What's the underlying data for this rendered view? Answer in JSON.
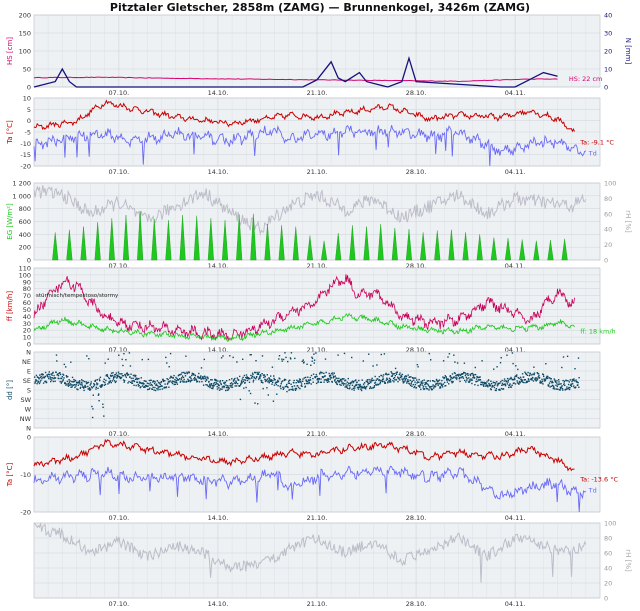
{
  "title": "Pitztaler Gletscher, 2858m (ZAMG) — Brunnenkogel, 3426m (ZAMG)",
  "x_ticks": [
    "07.10.",
    "14.10.",
    "21.10.",
    "28.10.",
    "04.11."
  ],
  "colors": {
    "magenta": "#d6006f",
    "navy": "#16127a",
    "red": "#c80000",
    "blue": "#6a6af5",
    "green": "#1fc81f",
    "gray": "#bdbdc9",
    "teal": "#0e4a66",
    "panel_bg": "#eef1f3"
  },
  "chart_data": [
    {
      "type": "line",
      "ylabel_left": "HS [cm]",
      "ylabel_right": "N [mm]",
      "ylim_left": [
        0,
        200
      ],
      "ylim_right": [
        0,
        40
      ],
      "yticks_left": [
        "0",
        "50",
        "100",
        "150",
        "200"
      ],
      "yticks_right": [
        "0",
        "10",
        "20",
        "30",
        "40"
      ],
      "series": [
        {
          "name": "HS",
          "axis": "left",
          "color": "#d6006f",
          "x": [
            0,
            5,
            10,
            15,
            20,
            25,
            30,
            35,
            40
          ],
          "values": [
            26,
            27,
            24,
            22,
            20,
            18,
            16,
            22,
            22
          ]
        },
        {
          "axis": "right",
          "color": "#16127a",
          "x": [
            0,
            1.5,
            2,
            2.5,
            3,
            4,
            15,
            19,
            20,
            21,
            21.5,
            22,
            23,
            23.5,
            25,
            26,
            26.5,
            27,
            33,
            34,
            35,
            36,
            37
          ],
          "values": [
            0,
            3,
            10,
            3,
            0,
            0,
            0,
            0,
            4,
            14,
            5,
            3,
            8,
            3,
            0,
            3,
            16,
            3,
            0,
            0,
            4,
            8,
            6
          ]
        }
      ],
      "annotations": [
        "HS: 22 cm"
      ],
      "grid": true
    },
    {
      "type": "line",
      "ylabel_left": "Ta [°C]",
      "ylim_left": [
        -20,
        12
      ],
      "yticks_left": [
        "-20",
        "-15",
        "-10",
        "-5",
        "0",
        "5",
        "10"
      ],
      "series": [
        {
          "name": "Ta",
          "color": "#c80000",
          "x": [
            0,
            3,
            5,
            7,
            10,
            14,
            18,
            20,
            22,
            25,
            28,
            30,
            33,
            35,
            37,
            38,
            40
          ],
          "values": [
            -2,
            1,
            10,
            7,
            3,
            0,
            4,
            3,
            5,
            8,
            2,
            4,
            3,
            6,
            2,
            -3,
            -9
          ]
        },
        {
          "name": "Td",
          "color": "#6a6af5",
          "x": [
            0,
            3,
            5,
            7,
            10,
            14,
            17,
            18,
            20,
            22,
            25,
            28,
            30,
            33,
            35,
            37,
            38,
            40
          ],
          "values": [
            -10,
            -6,
            -5,
            -8,
            -5,
            -8,
            -3,
            -8,
            -5,
            -4,
            -3,
            -6,
            -4,
            -13,
            -10,
            -8,
            -12,
            -14
          ]
        }
      ],
      "annotations": [
        "Ta: -9.1 °C",
        "Td"
      ],
      "grid": true
    },
    {
      "type": "area",
      "ylabel_left": "EG [W/m²]",
      "ylabel_right": "rH [%]",
      "ylim_left": [
        0,
        1200
      ],
      "ylim_right": [
        0,
        100
      ],
      "yticks_left": [
        "0",
        "200",
        "400",
        "600",
        "800",
        "1 000",
        "1 200"
      ],
      "yticks_right": [
        "0",
        "20",
        "40",
        "60",
        "80",
        "100"
      ],
      "series": [
        {
          "color": "#1fc81f",
          "daily_peak": [
            430,
            470,
            520,
            590,
            650,
            700,
            760,
            640,
            620,
            700,
            690,
            650,
            620,
            710,
            720,
            560,
            540,
            520,
            380,
            300,
            420,
            540,
            520,
            560,
            500,
            480,
            430,
            460,
            470,
            430,
            400,
            350,
            340,
            320,
            300,
            310,
            330
          ]
        },
        {
          "color": "#bdbdc9",
          "x": [
            0,
            2,
            4,
            6,
            8,
            10,
            12,
            14,
            16,
            18,
            20,
            22,
            24,
            26,
            28,
            30,
            32,
            34,
            36,
            38,
            40
          ],
          "values": [
            90,
            85,
            60,
            75,
            50,
            70,
            88,
            60,
            40,
            70,
            85,
            65,
            80,
            55,
            70,
            85,
            60,
            80,
            75,
            70,
            90
          ]
        }
      ],
      "grid": true
    },
    {
      "type": "line",
      "ylabel_left": "ff [km/h]",
      "ylim_left": [
        0,
        110
      ],
      "yticks_left": [
        "0",
        "10",
        "20",
        "30",
        "40",
        "50",
        "60",
        "70",
        "80",
        "90",
        "100",
        "110"
      ],
      "series": [
        {
          "color": "#c8005a",
          "x": [
            0,
            1,
            2,
            3,
            4,
            5,
            6,
            8,
            10,
            12,
            14,
            16,
            18,
            20,
            21,
            22,
            23,
            24,
            25,
            26,
            28,
            30,
            32,
            34,
            35,
            36,
            37,
            38,
            40
          ],
          "values": [
            40,
            70,
            90,
            85,
            60,
            40,
            30,
            25,
            20,
            15,
            12,
            25,
            45,
            60,
            85,
            95,
            70,
            75,
            60,
            40,
            30,
            35,
            60,
            45,
            30,
            55,
            75,
            60,
            30
          ]
        },
        {
          "name": "ff",
          "color": "#1fc81f",
          "x": [
            0,
            1,
            2,
            4,
            6,
            8,
            10,
            12,
            14,
            16,
            18,
            20,
            22,
            24,
            26,
            28,
            30,
            32,
            34,
            36,
            37,
            38,
            40
          ],
          "values": [
            20,
            28,
            35,
            25,
            18,
            15,
            12,
            10,
            8,
            15,
            22,
            30,
            40,
            35,
            25,
            20,
            18,
            25,
            22,
            25,
            32,
            25,
            18
          ]
        }
      ],
      "annotations": [
        "stürmisch/tempestoso/stormy",
        "ff: 18 km/h"
      ],
      "grid": true
    },
    {
      "type": "scatter",
      "ylabel_left": "dd [°]",
      "yticks_left": [
        "N",
        "NW",
        "W",
        "SW",
        "S",
        "SE",
        "E",
        "NE",
        "N"
      ],
      "series": [
        {
          "color": "#0e4a66",
          "note": "points mostly between W and SW (180–270°)"
        }
      ],
      "grid": true
    },
    {
      "type": "line",
      "ylabel_left": "Ta [°C]",
      "ylim_left": [
        -30,
        8
      ],
      "yticks_left": [
        "-20",
        "-10",
        "0"
      ],
      "series": [
        {
          "name": "Ta",
          "color": "#c80000",
          "x": [
            0,
            3,
            5,
            7,
            10,
            14,
            18,
            20,
            22,
            25,
            28,
            30,
            33,
            35,
            37,
            38,
            40
          ],
          "values": [
            -6,
            -2,
            5,
            3,
            -1,
            -5,
            0,
            -1,
            2,
            4,
            -2,
            0,
            -2,
            2,
            -4,
            -8,
            -13
          ]
        },
        {
          "name": "Td",
          "color": "#6a6af5",
          "x": [
            0,
            3,
            5,
            7,
            10,
            14,
            17,
            18,
            20,
            22,
            25,
            28,
            30,
            33,
            35,
            37,
            38,
            40
          ],
          "values": [
            -14,
            -12,
            -10,
            -13,
            -12,
            -15,
            -10,
            -18,
            -12,
            -10,
            -9,
            -12,
            -10,
            -22,
            -18,
            -15,
            -20,
            -20
          ]
        }
      ],
      "annotations": [
        "Ta: -13.6 °C",
        "Td"
      ],
      "grid": true
    },
    {
      "type": "line",
      "ylabel_right": "rH [%]",
      "ylim_right": [
        0,
        100
      ],
      "yticks_right": [
        "0",
        "20",
        "40",
        "60",
        "80",
        "100"
      ],
      "series": [
        {
          "color": "#bdbdc9",
          "x": [
            0,
            2,
            4,
            6,
            8,
            10,
            12,
            14,
            16,
            18,
            20,
            22,
            24,
            26,
            28,
            30,
            32,
            34,
            36,
            38,
            40
          ],
          "values": [
            95,
            85,
            60,
            75,
            55,
            70,
            60,
            40,
            45,
            65,
            80,
            60,
            75,
            50,
            65,
            80,
            55,
            80,
            70,
            60,
            90
          ]
        }
      ],
      "grid": true
    }
  ]
}
